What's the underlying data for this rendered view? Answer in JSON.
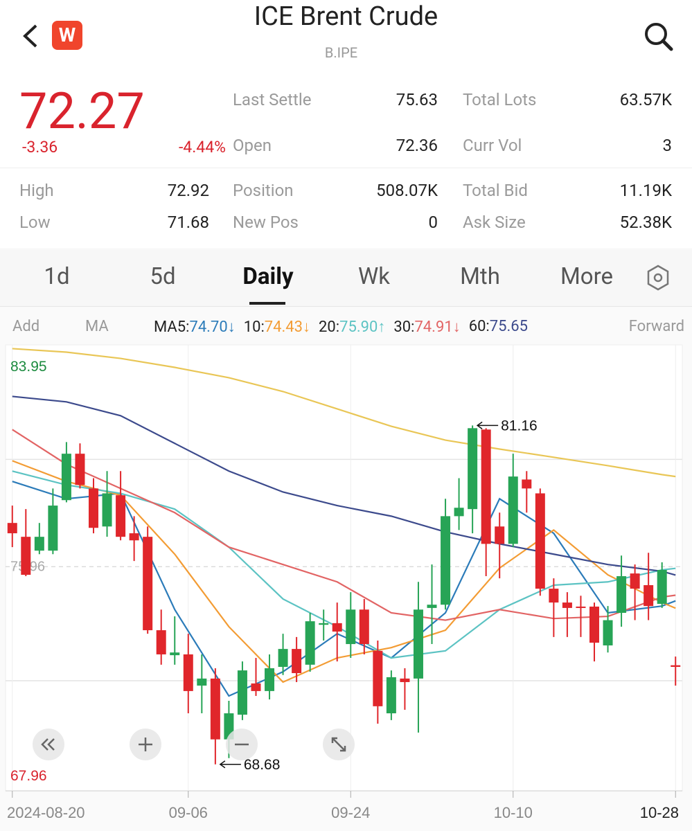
{
  "header": {
    "logo": "W",
    "title": "ICE Brent Crude",
    "subtitle": "B.IPE"
  },
  "quote": {
    "price": "72.27",
    "change": "-3.36",
    "change_pct": "-4.44%",
    "stats": [
      {
        "label": "Last Settle",
        "value": "75.63"
      },
      {
        "label": "Total Lots",
        "value": "63.57K"
      },
      {
        "label": "Open",
        "value": "72.36"
      },
      {
        "label": "Curr Vol",
        "value": "3"
      },
      {
        "label": "High",
        "value": "72.92"
      },
      {
        "label": "Position",
        "value": "508.07K"
      },
      {
        "label": "Total Bid",
        "value": "11.19K"
      },
      {
        "label": "Low",
        "value": "71.68"
      },
      {
        "label": "New Pos",
        "value": "0"
      },
      {
        "label": "Ask Size",
        "value": "52.38K"
      }
    ]
  },
  "tabs": [
    "1d",
    "5d",
    "Daily",
    "Wk",
    "Mth",
    "More"
  ],
  "active_tab": 2,
  "toolbar": {
    "add": "Add",
    "ma": "MA",
    "forward": "Forward"
  },
  "chart_data": {
    "type": "candlestick",
    "xlim": [
      -0.5,
      49.5
    ],
    "ylim": [
      67.96,
      83.95
    ],
    "reference_line": 75.96,
    "grid_y": [
      79.91,
      71.76
    ],
    "up_color": "#27a456",
    "down_color": "#e0262b",
    "x_labels": [
      {
        "value": 0,
        "label": "2024-08-20"
      },
      {
        "value": 13,
        "label": "09-06"
      },
      {
        "value": 25,
        "label": "09-24"
      },
      {
        "value": 37,
        "label": "10-10"
      },
      {
        "value": 49,
        "label": "10-28"
      }
    ],
    "candles": [
      {
        "o": 77.57,
        "h": 78.21,
        "l": 76.68,
        "c": 77.19
      },
      {
        "o": 77.06,
        "h": 78.08,
        "l": 75.61,
        "c": 75.66
      },
      {
        "o": 76.55,
        "h": 77.57,
        "l": 76.42,
        "c": 77.06
      },
      {
        "o": 76.55,
        "h": 78.84,
        "l": 76.42,
        "c": 78.21
      },
      {
        "o": 78.41,
        "h": 80.55,
        "l": 78.33,
        "c": 80.12
      },
      {
        "o": 80.12,
        "h": 80.5,
        "l": 78.84,
        "c": 78.97
      },
      {
        "o": 78.84,
        "h": 79.22,
        "l": 77.19,
        "c": 77.39
      },
      {
        "o": 77.44,
        "h": 79.48,
        "l": 77.06,
        "c": 78.66
      },
      {
        "o": 78.59,
        "h": 79.48,
        "l": 76.93,
        "c": 77.06
      },
      {
        "o": 77.19,
        "h": 77.82,
        "l": 76.17,
        "c": 76.93
      },
      {
        "o": 77.06,
        "h": 77.44,
        "l": 73.49,
        "c": 73.62
      },
      {
        "o": 73.62,
        "h": 74.38,
        "l": 72.35,
        "c": 72.73
      },
      {
        "o": 72.7,
        "h": 74.13,
        "l": 72.35,
        "c": 72.8
      },
      {
        "o": 72.73,
        "h": 73.49,
        "l": 70.56,
        "c": 71.38
      },
      {
        "o": 71.58,
        "h": 72.73,
        "l": 70.56,
        "c": 71.84
      },
      {
        "o": 71.84,
        "h": 72.22,
        "l": 68.68,
        "c": 69.6
      },
      {
        "o": 69.6,
        "h": 71.02,
        "l": 68.91,
        "c": 70.56
      },
      {
        "o": 70.51,
        "h": 72.47,
        "l": 70.31,
        "c": 72.14
      },
      {
        "o": 71.66,
        "h": 72.6,
        "l": 71.2,
        "c": 71.38
      },
      {
        "o": 71.38,
        "h": 72.73,
        "l": 71.07,
        "c": 72.22
      },
      {
        "o": 72.27,
        "h": 73.49,
        "l": 71.97,
        "c": 72.93
      },
      {
        "o": 72.93,
        "h": 73.37,
        "l": 71.71,
        "c": 72.04
      },
      {
        "o": 72.35,
        "h": 74.26,
        "l": 72.09,
        "c": 73.95
      },
      {
        "o": 73.82,
        "h": 74.38,
        "l": 73.24,
        "c": 73.88
      },
      {
        "o": 73.88,
        "h": 74.64,
        "l": 72.47,
        "c": 73.57
      },
      {
        "o": 73.11,
        "h": 75.02,
        "l": 72.6,
        "c": 74.38
      },
      {
        "o": 74.38,
        "h": 74.77,
        "l": 72.73,
        "c": 73.11
      },
      {
        "o": 72.86,
        "h": 73.24,
        "l": 70.18,
        "c": 70.82
      },
      {
        "o": 70.56,
        "h": 72.14,
        "l": 70.31,
        "c": 71.89
      },
      {
        "o": 71.84,
        "h": 72.22,
        "l": 70.69,
        "c": 71.71
      },
      {
        "o": 71.84,
        "h": 75.4,
        "l": 69.85,
        "c": 74.38
      },
      {
        "o": 74.44,
        "h": 76.04,
        "l": 73.11,
        "c": 74.56
      },
      {
        "o": 74.56,
        "h": 78.46,
        "l": 74.38,
        "c": 77.82
      },
      {
        "o": 77.82,
        "h": 79.22,
        "l": 77.31,
        "c": 78.13
      },
      {
        "o": 78.08,
        "h": 81.16,
        "l": 77.19,
        "c": 81.06
      },
      {
        "o": 81.01,
        "h": 81.06,
        "l": 75.61,
        "c": 76.8
      },
      {
        "o": 77.44,
        "h": 77.95,
        "l": 75.53,
        "c": 76.8
      },
      {
        "o": 76.8,
        "h": 80.12,
        "l": 76.68,
        "c": 79.28
      },
      {
        "o": 79.17,
        "h": 79.48,
        "l": 77.95,
        "c": 78.84
      },
      {
        "o": 78.66,
        "h": 78.84,
        "l": 74.89,
        "c": 75.15
      },
      {
        "o": 75.15,
        "h": 75.53,
        "l": 73.37,
        "c": 74.64
      },
      {
        "o": 74.64,
        "h": 75.02,
        "l": 73.37,
        "c": 74.44
      },
      {
        "o": 74.49,
        "h": 74.89,
        "l": 73.37,
        "c": 74.44
      },
      {
        "o": 74.49,
        "h": 74.64,
        "l": 72.47,
        "c": 73.16
      },
      {
        "o": 73.06,
        "h": 74.51,
        "l": 72.8,
        "c": 73.99
      },
      {
        "o": 74.26,
        "h": 76.37,
        "l": 73.75,
        "c": 75.61
      },
      {
        "o": 75.71,
        "h": 76.04,
        "l": 73.99,
        "c": 75.15
      },
      {
        "o": 75.28,
        "h": 76.47,
        "l": 73.99,
        "c": 74.51
      },
      {
        "o": 74.59,
        "h": 76.12,
        "l": 74.44,
        "c": 75.84
      },
      {
        "o": 72.33,
        "h": 72.65,
        "l": 71.58,
        "c": 72.27
      }
    ],
    "ma": [
      {
        "label": "MA5:",
        "color": "#2b7bb9",
        "value_label": "74.70",
        "arrow": "↓",
        "x": [
          0,
          4,
          8,
          12,
          16,
          20,
          24,
          28,
          32,
          36,
          40,
          44,
          48,
          49
        ],
        "values": [
          79.1,
          78.46,
          78.66,
          74.38,
          71.2,
          72.09,
          73.49,
          72.6,
          74.26,
          78.46,
          77.19,
          74.26,
          74.51,
          74.7
        ]
      },
      {
        "label": "10:",
        "color": "#f39c34",
        "value_label": "74.43",
        "arrow": "↓",
        "x": [
          0,
          4,
          8,
          12,
          16,
          20,
          24,
          28,
          32,
          36,
          40,
          44,
          48,
          49
        ],
        "values": [
          79.86,
          79.1,
          78.59,
          76.42,
          73.75,
          71.71,
          72.6,
          72.98,
          73.62,
          75.91,
          77.31,
          75.66,
          74.64,
          74.43
        ]
      },
      {
        "label": "20:",
        "color": "#5cc3c3",
        "value_label": "75.90",
        "arrow": "↑",
        "x": [
          0,
          4,
          8,
          12,
          16,
          20,
          24,
          28,
          32,
          36,
          40,
          44,
          48,
          49
        ],
        "values": [
          79.48,
          78.97,
          78.66,
          78.08,
          76.68,
          74.77,
          73.75,
          72.6,
          72.86,
          74.38,
          75.28,
          75.4,
          75.84,
          75.9
        ]
      },
      {
        "label": "30:",
        "color": "#e26464",
        "value_label": "74.91",
        "arrow": "↓",
        "x": [
          0,
          4,
          8,
          12,
          16,
          20,
          24,
          28,
          32,
          36,
          40,
          44,
          48,
          49
        ],
        "values": [
          81.01,
          79.73,
          78.84,
          77.95,
          76.68,
          76.04,
          75.4,
          74.26,
          73.99,
          74.38,
          74.05,
          74.13,
          74.84,
          74.91
        ]
      },
      {
        "label": "60:",
        "color": "#3c4a8c",
        "value_label": "75.65",
        "arrow": "",
        "x": [
          0,
          4,
          8,
          12,
          16,
          20,
          24,
          28,
          32,
          36,
          40,
          44,
          48,
          49
        ],
        "values": [
          82.23,
          82.03,
          81.52,
          80.5,
          79.48,
          78.71,
          78.21,
          77.82,
          77.24,
          76.8,
          76.42,
          76.04,
          75.79,
          75.65
        ]
      },
      {
        "color": "#e9c656",
        "x": [
          0,
          4,
          8,
          12,
          16,
          20,
          24,
          28,
          32,
          36,
          40,
          44,
          48,
          49
        ],
        "values": [
          83.99,
          83.86,
          83.63,
          83.3,
          82.92,
          82.41,
          81.77,
          81.13,
          80.62,
          80.29,
          79.99,
          79.68,
          79.35,
          79.28
        ]
      }
    ],
    "annotations": [
      {
        "index": 34,
        "value": 81.16
      },
      {
        "index": 15,
        "value": 68.68
      }
    ]
  }
}
